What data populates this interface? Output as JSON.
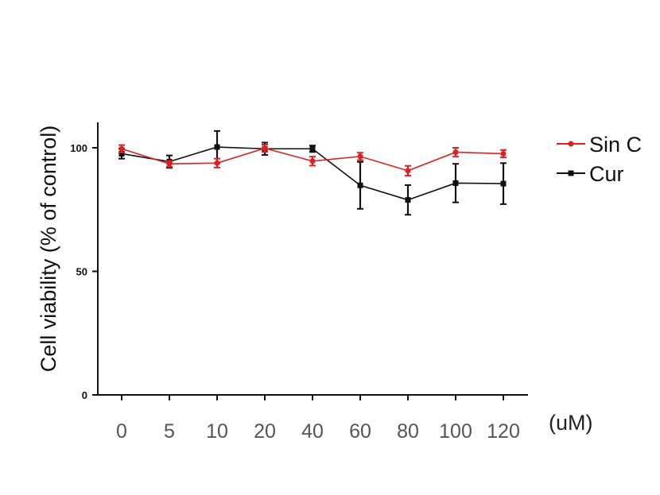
{
  "chart_data": {
    "type": "line",
    "title": "",
    "categories": [
      "0",
      "5",
      "10",
      "20",
      "40",
      "60",
      "80",
      "100",
      "120"
    ],
    "x_unit_label": "(uM)",
    "ylabel": "Cell viability (% of control)",
    "ylim": [
      0,
      110
    ],
    "yticks": [
      "0",
      "50",
      "100"
    ],
    "ytick_values": [
      0,
      50,
      100
    ],
    "grid": false,
    "legend_position": "top-right",
    "series": [
      {
        "name": "Sin C",
        "color": "#e02020",
        "marker": "circle",
        "values": [
          99.6,
          93.5,
          93.8,
          99.8,
          94.6,
          96.5,
          90.7,
          98.2,
          97.6
        ],
        "errors": [
          1.5,
          1.2,
          1.8,
          1.5,
          1.8,
          1.5,
          2.0,
          1.8,
          1.5
        ]
      },
      {
        "name": "Cur",
        "color": "#111111",
        "marker": "square",
        "values": [
          97.6,
          94.4,
          100.3,
          99.6,
          99.6,
          84.8,
          78.9,
          85.7,
          85.5
        ],
        "errors": [
          2.0,
          2.5,
          6.5,
          2.5,
          1.3,
          9.5,
          6.0,
          7.8,
          8.3
        ]
      }
    ]
  }
}
